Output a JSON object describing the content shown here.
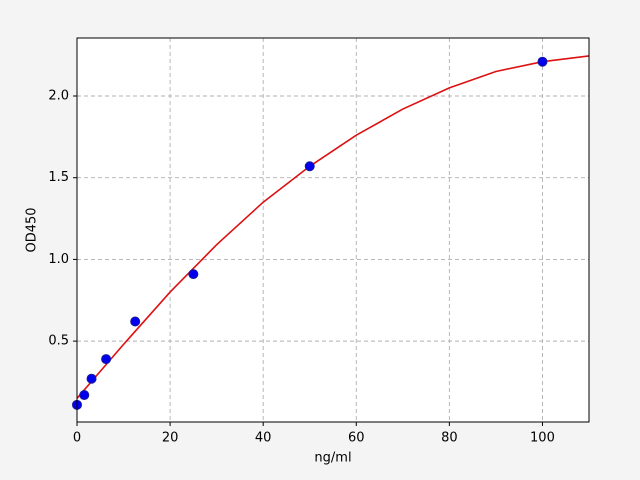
{
  "chart_data": {
    "type": "scatter",
    "xlabel": "ng/ml",
    "ylabel": "OD450",
    "xlim": [
      0,
      110
    ],
    "xticks": [
      0,
      20,
      40,
      60,
      80,
      100
    ],
    "ylim": [
      0.005,
      2.355
    ],
    "yticks": [
      0.5,
      {
        "value": 1,
        "label": "1.0"
      },
      1.5,
      {
        "value": 2,
        "label": "2.0"
      }
    ],
    "grid": true,
    "series": [
      {
        "type": "scatter",
        "color": "#0000ee",
        "x": [
          0,
          1.56,
          3.125,
          6.25,
          12.5,
          25,
          50,
          100
        ],
        "values": [
          0.11,
          0.17,
          0.27,
          0.39,
          0.62,
          0.91,
          1.57,
          2.21
        ]
      },
      {
        "type": "line",
        "color": "#dd1111",
        "x": [
          0,
          10,
          20,
          30,
          40,
          50,
          60,
          70,
          80,
          90,
          100,
          110
        ],
        "values": [
          0.15,
          0.48,
          0.8,
          1.09,
          1.35,
          1.57,
          1.76,
          1.92,
          2.05,
          2.15,
          2.21,
          2.245
        ]
      }
    ]
  }
}
